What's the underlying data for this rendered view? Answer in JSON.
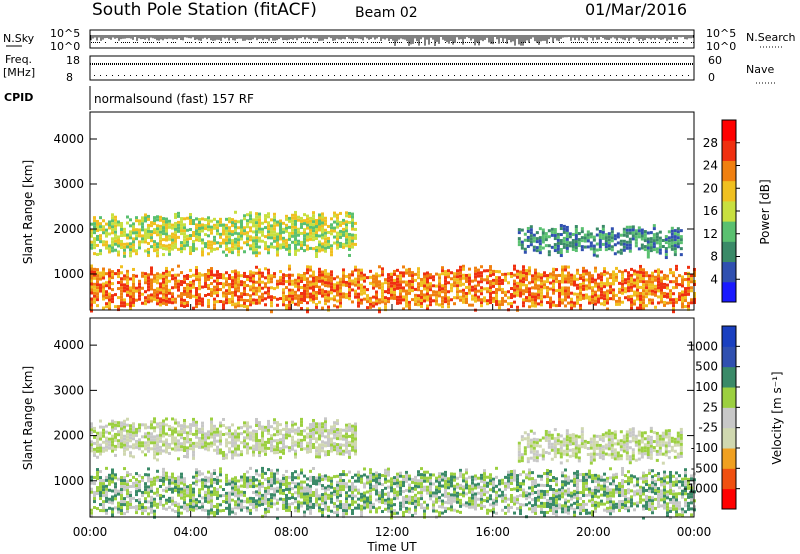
{
  "header": {
    "station": "South Pole Station (fitACF)",
    "beam": "Beam 02",
    "date": "01/Mar/2016"
  },
  "sky_panel": {
    "left_label": "N.Sky",
    "left_top": "10^5",
    "left_bottom": "10^0",
    "right_top": "10^5",
    "right_bottom": "10^0",
    "right_label": "N.Search"
  },
  "freq_panel": {
    "left_label_1": "Freq.",
    "left_label_2": "[MHz]",
    "left_top": "18",
    "left_bottom": "8",
    "right_top": "60",
    "right_bottom": "0",
    "right_label": "Nave"
  },
  "cpid": {
    "label": "CPID",
    "text": "normalsound (fast) 157 RF"
  },
  "colors": {
    "power_scale": [
      "#1a1aff",
      "#3050b0",
      "#3a8a68",
      "#5ac070",
      "#c8e040",
      "#f0c020",
      "#f08010",
      "#f03010",
      "#ff0000"
    ],
    "velocity_scale": [
      "#ff0000",
      "#f05010",
      "#f0a020",
      "#d0d8b0",
      "#c8c8c8",
      "#9cd040",
      "#3a8a68",
      "#3050b0",
      "#1a40c0"
    ]
  },
  "chart_data": [
    {
      "type": "heatmap",
      "name": "power",
      "ylabel": "Slant Range [km]",
      "yticks": [
        "1000",
        "2000",
        "3000",
        "4000"
      ],
      "ylim": [
        200,
        4600
      ],
      "colorbar_label": "Power [dB]",
      "colorbar_ticks": [
        "4",
        "8",
        "12",
        "16",
        "20",
        "24",
        "28"
      ],
      "colorbar_range": [
        0,
        32
      ],
      "bands": [
        {
          "x_start": 0.0,
          "x_end": 24.0,
          "range_low": 300,
          "range_high": 1100,
          "value": 22
        },
        {
          "x_start": 0.0,
          "x_end": 10.5,
          "range_low": 1500,
          "range_high": 2300,
          "value": 16
        },
        {
          "x_start": 17.0,
          "x_end": 23.5,
          "range_low": 1500,
          "range_high": 2000,
          "value": 9
        }
      ]
    },
    {
      "type": "heatmap",
      "name": "velocity",
      "ylabel": "Slant Range [km]",
      "yticks": [
        "1000",
        "2000",
        "3000",
        "4000"
      ],
      "ylim": [
        200,
        4600
      ],
      "colorbar_label": "Velocity [m s⁻¹]",
      "colorbar_ticks": [
        "-1000",
        "-500",
        "-100",
        "-25",
        "25",
        "100",
        "500",
        "1000"
      ],
      "colorbar_range": [
        -1200,
        1200
      ],
      "bands": [
        {
          "x_start": 0.0,
          "x_end": 24.0,
          "range_low": 300,
          "range_high": 1200,
          "value": 150
        },
        {
          "x_start": 0.0,
          "x_end": 10.5,
          "range_low": 1600,
          "range_high": 2300,
          "value": 0
        },
        {
          "x_start": 17.0,
          "x_end": 23.5,
          "range_low": 1500,
          "range_high": 2100,
          "value": -30
        }
      ]
    }
  ],
  "x_axis": {
    "label": "Time UT",
    "ticks": [
      "00:00",
      "04:00",
      "08:00",
      "12:00",
      "16:00",
      "20:00",
      "00:00"
    ],
    "range_hours": [
      0,
      24
    ]
  }
}
